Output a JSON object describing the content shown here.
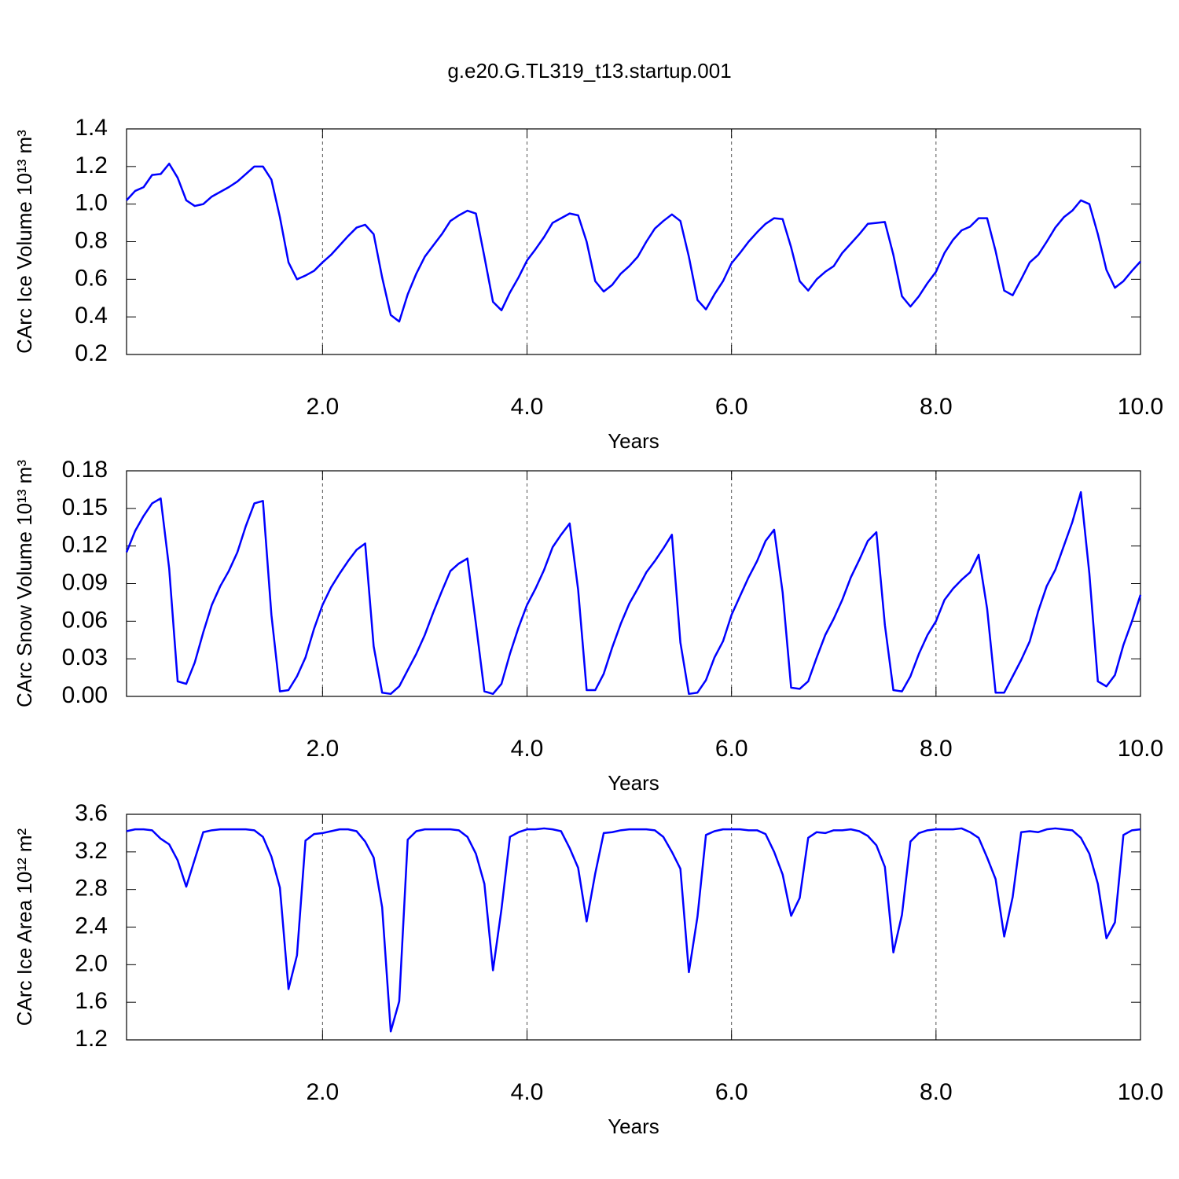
{
  "chart_data": [
    {
      "type": "line",
      "title": "g.e20.G.TL319_t13.startup.001",
      "xlabel": "Years",
      "ylabel": "CArc Ice Volume 10¹³ m³",
      "xlim": [
        0.083,
        10
      ],
      "xticks": [
        {
          "value": 2,
          "label": "2.0"
        },
        {
          "value": 4,
          "label": "4.0"
        },
        {
          "value": 6,
          "label": "6.0"
        },
        {
          "value": 8,
          "label": "8.0"
        },
        {
          "value": 10,
          "label": "10.0"
        }
      ],
      "ylim": [
        0.2,
        1.4
      ],
      "yticks": [
        0.2,
        0.4,
        0.6,
        0.8,
        {
          "value": 1,
          "label": "1.0"
        },
        1.2,
        1.4
      ],
      "grid": true,
      "x": [
        0.083,
        0.167,
        0.25,
        0.333,
        0.417,
        0.5,
        0.583,
        0.667,
        0.75,
        0.833,
        0.917,
        1,
        1.083,
        1.167,
        1.25,
        1.333,
        1.417,
        1.5,
        1.583,
        1.667,
        1.75,
        1.833,
        1.917,
        2,
        2.083,
        2.167,
        2.25,
        2.333,
        2.417,
        2.5,
        2.583,
        2.667,
        2.75,
        2.833,
        2.917,
        3,
        3.083,
        3.167,
        3.25,
        3.333,
        3.417,
        3.5,
        3.583,
        3.667,
        3.75,
        3.833,
        3.917,
        4,
        4.083,
        4.167,
        4.25,
        4.333,
        4.417,
        4.5,
        4.583,
        4.667,
        4.75,
        4.833,
        4.917,
        5,
        5.083,
        5.167,
        5.25,
        5.333,
        5.417,
        5.5,
        5.583,
        5.667,
        5.75,
        5.833,
        5.917,
        6,
        6.083,
        6.167,
        6.25,
        6.333,
        6.417,
        6.5,
        6.583,
        6.667,
        6.75,
        6.833,
        6.917,
        7,
        7.083,
        7.167,
        7.25,
        7.333,
        7.417,
        7.5,
        7.583,
        7.667,
        7.75,
        7.833,
        7.917,
        8,
        8.083,
        8.167,
        8.25,
        8.333,
        8.417,
        8.5,
        8.583,
        8.667,
        8.75,
        8.833,
        8.917,
        9,
        9.083,
        9.167,
        9.25,
        9.333,
        9.417,
        9.5,
        9.583,
        9.667,
        9.75,
        9.833,
        9.917,
        10
      ],
      "series": [
        {
          "color": "#0000ff",
          "values": [
            1.02,
            1.07,
            1.09,
            1.155,
            1.16,
            1.215,
            1.14,
            1.02,
            0.99,
            1.0,
            1.04,
            1.065,
            1.09,
            1.12,
            1.16,
            1.2,
            1.2,
            1.13,
            0.93,
            0.69,
            0.6,
            0.62,
            0.645,
            0.69,
            0.73,
            0.78,
            0.83,
            0.875,
            0.89,
            0.84,
            0.61,
            0.41,
            0.375,
            0.52,
            0.63,
            0.72,
            0.78,
            0.84,
            0.91,
            0.94,
            0.965,
            0.95,
            0.72,
            0.48,
            0.435,
            0.53,
            0.61,
            0.7,
            0.76,
            0.825,
            0.9,
            0.925,
            0.95,
            0.94,
            0.8,
            0.59,
            0.535,
            0.57,
            0.63,
            0.67,
            0.72,
            0.8,
            0.87,
            0.91,
            0.945,
            0.91,
            0.72,
            0.49,
            0.44,
            0.52,
            0.59,
            0.685,
            0.74,
            0.8,
            0.85,
            0.895,
            0.925,
            0.92,
            0.77,
            0.59,
            0.54,
            0.6,
            0.64,
            0.67,
            0.74,
            0.79,
            0.84,
            0.895,
            0.9,
            0.905,
            0.73,
            0.51,
            0.455,
            0.51,
            0.58,
            0.64,
            0.74,
            0.81,
            0.86,
            0.88,
            0.925,
            0.925,
            0.75,
            0.54,
            0.515,
            0.6,
            0.69,
            0.73,
            0.8,
            0.875,
            0.93,
            0.965,
            1.02,
            1.0,
            0.84,
            0.65,
            0.555,
            0.59,
            0.645,
            0.695
          ]
        }
      ]
    },
    {
      "type": "line",
      "xlabel": "Years",
      "ylabel": "CArc Snow Volume 10¹³ m³",
      "xlim": [
        0.083,
        10
      ],
      "xticks": [
        {
          "value": 2,
          "label": "2.0"
        },
        {
          "value": 4,
          "label": "4.0"
        },
        {
          "value": 6,
          "label": "6.0"
        },
        {
          "value": 8,
          "label": "8.0"
        },
        {
          "value": 10,
          "label": "10.0"
        }
      ],
      "ylim": [
        0,
        0.18
      ],
      "yticks": [
        {
          "value": 0,
          "label": "0.00"
        },
        {
          "value": 0.03,
          "label": "0.03"
        },
        {
          "value": 0.06,
          "label": "0.06"
        },
        {
          "value": 0.09,
          "label": "0.09"
        },
        {
          "value": 0.12,
          "label": "0.12"
        },
        {
          "value": 0.15,
          "label": "0.15"
        },
        {
          "value": 0.18,
          "label": "0.18"
        }
      ],
      "grid": true,
      "x": [
        0.083,
        0.167,
        0.25,
        0.333,
        0.417,
        0.5,
        0.583,
        0.667,
        0.75,
        0.833,
        0.917,
        1,
        1.083,
        1.167,
        1.25,
        1.333,
        1.417,
        1.5,
        1.583,
        1.667,
        1.75,
        1.833,
        1.917,
        2,
        2.083,
        2.167,
        2.25,
        2.333,
        2.417,
        2.5,
        2.583,
        2.667,
        2.75,
        2.833,
        2.917,
        3,
        3.083,
        3.167,
        3.25,
        3.333,
        3.417,
        3.5,
        3.583,
        3.667,
        3.75,
        3.833,
        3.917,
        4,
        4.083,
        4.167,
        4.25,
        4.333,
        4.417,
        4.5,
        4.583,
        4.667,
        4.75,
        4.833,
        4.917,
        5,
        5.083,
        5.167,
        5.25,
        5.333,
        5.417,
        5.5,
        5.583,
        5.667,
        5.75,
        5.833,
        5.917,
        6,
        6.083,
        6.167,
        6.25,
        6.333,
        6.417,
        6.5,
        6.583,
        6.667,
        6.75,
        6.833,
        6.917,
        7,
        7.083,
        7.167,
        7.25,
        7.333,
        7.417,
        7.5,
        7.583,
        7.667,
        7.75,
        7.833,
        7.917,
        8,
        8.083,
        8.167,
        8.25,
        8.333,
        8.417,
        8.5,
        8.583,
        8.667,
        8.75,
        8.833,
        8.917,
        9,
        9.083,
        9.167,
        9.25,
        9.333,
        9.417,
        9.5,
        9.583,
        9.667,
        9.75,
        9.833,
        9.917,
        10
      ],
      "series": [
        {
          "color": "#0000ff",
          "values": [
            0.115,
            0.132,
            0.144,
            0.154,
            0.158,
            0.102,
            0.012,
            0.01,
            0.027,
            0.051,
            0.073,
            0.088,
            0.1,
            0.115,
            0.136,
            0.154,
            0.156,
            0.065,
            0.004,
            0.005,
            0.016,
            0.031,
            0.054,
            0.073,
            0.087,
            0.098,
            0.108,
            0.117,
            0.122,
            0.04,
            0.003,
            0.002,
            0.008,
            0.021,
            0.034,
            0.049,
            0.067,
            0.084,
            0.1,
            0.106,
            0.11,
            0.058,
            0.004,
            0.002,
            0.01,
            0.034,
            0.055,
            0.073,
            0.086,
            0.101,
            0.119,
            0.129,
            0.138,
            0.085,
            0.005,
            0.005,
            0.018,
            0.039,
            0.058,
            0.074,
            0.086,
            0.099,
            0.108,
            0.118,
            0.129,
            0.043,
            0.002,
            0.003,
            0.013,
            0.031,
            0.044,
            0.065,
            0.08,
            0.095,
            0.108,
            0.124,
            0.133,
            0.083,
            0.007,
            0.006,
            0.012,
            0.031,
            0.049,
            0.062,
            0.077,
            0.095,
            0.109,
            0.124,
            0.131,
            0.057,
            0.005,
            0.004,
            0.016,
            0.034,
            0.049,
            0.06,
            0.077,
            0.086,
            0.093,
            0.099,
            0.113,
            0.07,
            0.003,
            0.003,
            0.016,
            0.029,
            0.044,
            0.068,
            0.088,
            0.101,
            0.12,
            0.139,
            0.163,
            0.098,
            0.012,
            0.008,
            0.017,
            0.041,
            0.06,
            0.081
          ]
        }
      ]
    },
    {
      "type": "line",
      "xlabel": "Years",
      "ylabel": "CArc Ice Area 10¹² m²",
      "xlim": [
        0.083,
        10
      ],
      "xticks": [
        {
          "value": 2,
          "label": "2.0"
        },
        {
          "value": 4,
          "label": "4.0"
        },
        {
          "value": 6,
          "label": "6.0"
        },
        {
          "value": 8,
          "label": "8.0"
        },
        {
          "value": 10,
          "label": "10.0"
        }
      ],
      "ylim": [
        1.2,
        3.6
      ],
      "yticks": [
        1.2,
        1.6,
        {
          "value": 2,
          "label": "2.0"
        },
        2.4,
        2.8,
        3.2,
        3.6
      ],
      "grid": true,
      "x": [
        0.083,
        0.167,
        0.25,
        0.333,
        0.417,
        0.5,
        0.583,
        0.667,
        0.75,
        0.833,
        0.917,
        1,
        1.083,
        1.167,
        1.25,
        1.333,
        1.417,
        1.5,
        1.583,
        1.667,
        1.75,
        1.833,
        1.917,
        2,
        2.083,
        2.167,
        2.25,
        2.333,
        2.417,
        2.5,
        2.583,
        2.667,
        2.75,
        2.833,
        2.917,
        3,
        3.083,
        3.167,
        3.25,
        3.333,
        3.417,
        3.5,
        3.583,
        3.667,
        3.75,
        3.833,
        3.917,
        4,
        4.083,
        4.167,
        4.25,
        4.333,
        4.417,
        4.5,
        4.583,
        4.667,
        4.75,
        4.833,
        4.917,
        5,
        5.083,
        5.167,
        5.25,
        5.333,
        5.417,
        5.5,
        5.583,
        5.667,
        5.75,
        5.833,
        5.917,
        6,
        6.083,
        6.167,
        6.25,
        6.333,
        6.417,
        6.5,
        6.583,
        6.667,
        6.75,
        6.833,
        6.917,
        7,
        7.083,
        7.167,
        7.25,
        7.333,
        7.417,
        7.5,
        7.583,
        7.667,
        7.75,
        7.833,
        7.917,
        8,
        8.083,
        8.167,
        8.25,
        8.333,
        8.417,
        8.5,
        8.583,
        8.667,
        8.75,
        8.833,
        8.917,
        9,
        9.083,
        9.167,
        9.25,
        9.333,
        9.417,
        9.5,
        9.583,
        9.667,
        9.75,
        9.833,
        9.917,
        10
      ],
      "series": [
        {
          "color": "#0000ff",
          "values": [
            3.42,
            3.44,
            3.44,
            3.43,
            3.34,
            3.28,
            3.11,
            2.83,
            3.12,
            3.41,
            3.43,
            3.44,
            3.44,
            3.44,
            3.44,
            3.43,
            3.36,
            3.15,
            2.82,
            1.74,
            2.1,
            3.32,
            3.39,
            3.4,
            3.42,
            3.44,
            3.44,
            3.42,
            3.31,
            3.14,
            2.61,
            1.29,
            1.61,
            3.33,
            3.42,
            3.44,
            3.44,
            3.44,
            3.44,
            3.43,
            3.36,
            3.18,
            2.86,
            1.94,
            2.59,
            3.36,
            3.41,
            3.44,
            3.44,
            3.45,
            3.44,
            3.42,
            3.24,
            3.03,
            2.46,
            2.97,
            3.4,
            3.41,
            3.43,
            3.44,
            3.44,
            3.44,
            3.43,
            3.36,
            3.2,
            3.02,
            1.92,
            2.51,
            3.38,
            3.42,
            3.44,
            3.44,
            3.44,
            3.43,
            3.43,
            3.39,
            3.2,
            2.96,
            2.52,
            2.71,
            3.35,
            3.41,
            3.4,
            3.43,
            3.43,
            3.44,
            3.42,
            3.37,
            3.27,
            3.04,
            2.13,
            2.53,
            3.31,
            3.4,
            3.43,
            3.44,
            3.44,
            3.44,
            3.45,
            3.41,
            3.35,
            3.14,
            2.91,
            2.3,
            2.72,
            3.41,
            3.42,
            3.41,
            3.44,
            3.45,
            3.44,
            3.43,
            3.35,
            3.18,
            2.86,
            2.28,
            2.45,
            3.38,
            3.43,
            3.44
          ]
        }
      ]
    }
  ]
}
